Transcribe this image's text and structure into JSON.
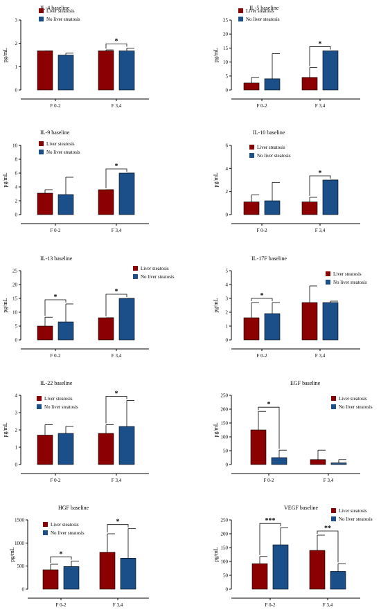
{
  "chart_data": [
    {
      "type": "bar",
      "title": "IL-4 baseline",
      "ylabel": "pg/mL",
      "categories": [
        "F 0-2",
        "F 3,4"
      ],
      "ylim": [
        0,
        3
      ],
      "yticks": [
        0,
        1,
        2,
        3
      ],
      "series": [
        {
          "name": "Liver steatosis",
          "color": "#8b0000",
          "values": [
            1.68,
            1.68
          ],
          "errors": [
            1.68,
            1.72
          ]
        },
        {
          "name": "No liver steatosis",
          "color": "#1b4f8a",
          "values": [
            1.5,
            1.68
          ],
          "errors": [
            1.58,
            1.8
          ]
        }
      ],
      "legend_position": "top-left",
      "significance": [
        {
          "category": "F 3,4",
          "label": "*"
        }
      ]
    },
    {
      "type": "bar",
      "title": "IL-5 baseline",
      "ylabel": "pg/mL",
      "categories": [
        "F 0-2",
        "F 3,4"
      ],
      "ylim": [
        0,
        25
      ],
      "yticks": [
        0,
        5,
        10,
        15,
        20,
        25
      ],
      "series": [
        {
          "name": "Liver steatosis",
          "color": "#8b0000",
          "values": [
            2.5,
            4.5
          ],
          "errors": [
            4.5,
            8
          ]
        },
        {
          "name": "No liver steatosis",
          "color": "#1b4f8a",
          "values": [
            4,
            14
          ],
          "errors": [
            13,
            14
          ]
        }
      ],
      "legend_position": "top-left",
      "significance": [
        {
          "category": "F 3,4",
          "label": "*"
        }
      ]
    },
    {
      "type": "bar",
      "title": "IL-9 baseline",
      "ylabel": "pg/mL",
      "categories": [
        "F 0-2",
        "F 3,4"
      ],
      "ylim": [
        0,
        10
      ],
      "yticks": [
        0,
        2,
        4,
        6,
        8,
        10
      ],
      "series": [
        {
          "name": "Liver steatosis",
          "color": "#8b0000",
          "values": [
            3.1,
            3.6
          ],
          "errors": [
            3.6,
            3.6
          ]
        },
        {
          "name": "No liver steatosis",
          "color": "#1b4f8a",
          "values": [
            2.9,
            6
          ],
          "errors": [
            5.4,
            6
          ]
        }
      ],
      "legend_position": "top-left",
      "significance": [
        {
          "category": "F 3,4",
          "label": "*"
        }
      ]
    },
    {
      "type": "bar",
      "title": "IL-10 baseline",
      "ylabel": "pg/mL",
      "categories": [
        "F 0-2",
        "F 3,4"
      ],
      "ylim": [
        0,
        6
      ],
      "yticks": [
        0,
        2,
        4,
        6
      ],
      "series": [
        {
          "name": "Liver steatosis",
          "color": "#8b0000",
          "values": [
            1.1,
            1.1
          ],
          "errors": [
            1.7,
            1.5
          ]
        },
        {
          "name": "No liver steatosis",
          "color": "#1b4f8a",
          "values": [
            1.2,
            3
          ],
          "errors": [
            2.8,
            3
          ]
        }
      ],
      "legend_position": "top-left",
      "significance": [
        {
          "category": "F 3,4",
          "label": "*"
        }
      ]
    },
    {
      "type": "bar",
      "title": "IL-13 baseline",
      "ylabel": "pg/mL",
      "categories": [
        "F 0-2",
        "F 3,4"
      ],
      "ylim": [
        0,
        25
      ],
      "yticks": [
        0,
        5,
        10,
        15,
        20,
        25
      ],
      "series": [
        {
          "name": "Liver steatosis",
          "color": "#8b0000",
          "values": [
            5,
            8
          ],
          "errors": [
            8.2,
            8
          ]
        },
        {
          "name": "No liver steatosis",
          "color": "#1b4f8a",
          "values": [
            6.5,
            15
          ],
          "errors": [
            13,
            15
          ]
        }
      ],
      "legend_position": "top-right",
      "significance": [
        {
          "category": "F 0-2",
          "label": "*"
        },
        {
          "category": "F 3,4",
          "label": "*"
        }
      ]
    },
    {
      "type": "bar",
      "title": "IL-17F baseline",
      "ylabel": "pg/mL",
      "categories": [
        "F 0-2",
        "F 3,4"
      ],
      "ylim": [
        0,
        5
      ],
      "yticks": [
        0,
        1,
        2,
        3,
        4,
        5
      ],
      "series": [
        {
          "name": "Liver steatosis",
          "color": "#8b0000",
          "values": [
            1.6,
            2.7
          ],
          "errors": [
            2.7,
            3.9
          ]
        },
        {
          "name": "No liver steatosis",
          "color": "#1b4f8a",
          "values": [
            1.9,
            2.7
          ],
          "errors": [
            2.7,
            2.8
          ]
        }
      ],
      "legend_position": "top-right",
      "significance": [
        {
          "category": "F 0-2",
          "label": "*"
        }
      ]
    },
    {
      "type": "bar",
      "title": "IL-22 baseline",
      "ylabel": "pg/mL",
      "categories": [
        "F 0-2",
        "F 3,4"
      ],
      "ylim": [
        0,
        4
      ],
      "yticks": [
        0,
        1,
        2,
        3,
        4
      ],
      "series": [
        {
          "name": "Liver steatosis",
          "color": "#8b0000",
          "values": [
            1.7,
            1.8
          ],
          "errors": [
            2.3,
            2.3
          ]
        },
        {
          "name": "No liver steatosis",
          "color": "#1b4f8a",
          "values": [
            1.8,
            2.2
          ],
          "errors": [
            2.2,
            3.7
          ]
        }
      ],
      "legend_position": "top-left",
      "significance": [
        {
          "category": "F 3,4",
          "label": "*"
        }
      ]
    },
    {
      "type": "bar",
      "title": "EGF baseline",
      "ylabel": "pg/mL",
      "categories": [
        "F 0-2",
        "F 3,4"
      ],
      "ylim": [
        0,
        250
      ],
      "yticks": [
        0,
        50,
        100,
        150,
        200,
        250
      ],
      "series": [
        {
          "name": "Liver steatosis",
          "color": "#8b0000",
          "values": [
            125,
            18
          ],
          "errors": [
            192,
            52
          ]
        },
        {
          "name": "No liver steatosis",
          "color": "#1b4f8a",
          "values": [
            25,
            6
          ],
          "errors": [
            52,
            18
          ]
        }
      ],
      "legend_position": "top-right",
      "significance": [
        {
          "category": "F 0-2",
          "label": "*"
        }
      ]
    },
    {
      "type": "bar",
      "title": "HGF baseline",
      "ylabel": "pg/mL",
      "categories": [
        "F 0-2",
        "F 3,4"
      ],
      "ylim": [
        0,
        1500
      ],
      "yticks": [
        0,
        500,
        1000,
        1500
      ],
      "series": [
        {
          "name": "Liver steatosis",
          "color": "#8b0000",
          "values": [
            420,
            800
          ],
          "errors": [
            540,
            1200
          ]
        },
        {
          "name": "No liver steatosis",
          "color": "#1b4f8a",
          "values": [
            490,
            670
          ],
          "errors": [
            610,
            1310
          ]
        }
      ],
      "legend_position": "top-left",
      "significance": [
        {
          "category": "F 0-2",
          "label": "*"
        },
        {
          "category": "F 3,4",
          "label": "*"
        }
      ]
    },
    {
      "type": "bar",
      "title": "VEGF baseline",
      "ylabel": "pg/mL",
      "categories": [
        "F 0-2",
        "F 3,4"
      ],
      "ylim": [
        0,
        250
      ],
      "yticks": [
        0,
        50,
        100,
        150,
        200,
        250
      ],
      "series": [
        {
          "name": "Liver steatosis",
          "color": "#8b0000",
          "values": [
            92,
            140
          ],
          "errors": [
            118,
            195
          ]
        },
        {
          "name": "No liver steatosis",
          "color": "#1b4f8a",
          "values": [
            160,
            64
          ],
          "errors": [
            222,
            92
          ]
        }
      ],
      "legend_position": "top-right",
      "significance": [
        {
          "category": "F 0-2",
          "label": "***"
        },
        {
          "category": "F 3,4",
          "label": "**"
        }
      ]
    }
  ]
}
